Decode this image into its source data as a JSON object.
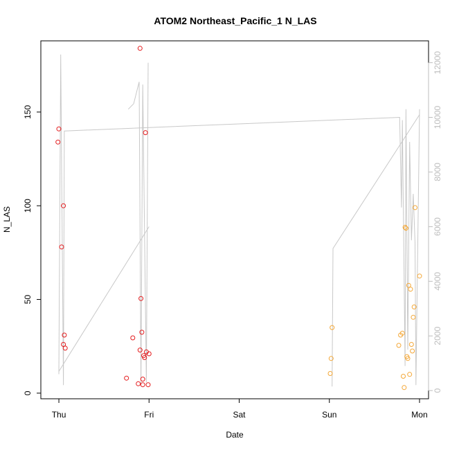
{
  "chart_data": {
    "type": "scatter",
    "title": "ATOM2 Northeast_Pacific_1 N_LAS",
    "xlabel": "Date",
    "ylabel": "N_LAS",
    "x_ticks": [
      "Thu",
      "Fri",
      "Sat",
      "Sun",
      "Mon"
    ],
    "xlim": [
      -0.2,
      4.1
    ],
    "ylim": [
      -3,
      188
    ],
    "y_ticks": [
      0,
      50,
      100,
      150
    ],
    "y2lim": [
      -300,
      12800
    ],
    "y2_ticks": [
      0,
      2000,
      4000,
      6000,
      8000,
      10000,
      12000
    ],
    "grid": false,
    "colors": {
      "series_red": "#e41a1c",
      "series_orange": "#f4a736",
      "line_gray": "#c8c8c8",
      "axis": "#000000",
      "right_axis": "#bdbdbd"
    },
    "series": [
      {
        "color": "series_red",
        "points": [
          [
            0.0,
            141
          ],
          [
            -0.01,
            134
          ],
          [
            0.05,
            100
          ],
          [
            0.03,
            78
          ],
          [
            0.06,
            31
          ],
          [
            0.05,
            26
          ],
          [
            0.07,
            24
          ],
          [
            0.75,
            8
          ],
          [
            0.82,
            29.5
          ],
          [
            0.88,
            5
          ],
          [
            0.9,
            23
          ],
          [
            0.91,
            50.5
          ],
          [
            0.92,
            32.5
          ],
          [
            0.93,
            7.5
          ],
          [
            0.93,
            4.5
          ],
          [
            0.94,
            20
          ],
          [
            0.95,
            19
          ],
          [
            0.96,
            139
          ],
          [
            0.97,
            22
          ],
          [
            0.99,
            4.5
          ],
          [
            1.0,
            21
          ],
          [
            0.9,
            184
          ]
        ]
      },
      {
        "color": "series_orange",
        "points": [
          [
            3.01,
            10.5
          ],
          [
            3.02,
            18.5
          ],
          [
            3.03,
            35
          ],
          [
            3.77,
            25.5
          ],
          [
            3.79,
            31
          ],
          [
            3.81,
            32
          ],
          [
            3.82,
            9
          ],
          [
            3.83,
            3
          ],
          [
            3.84,
            88.5
          ],
          [
            3.85,
            88
          ],
          [
            3.86,
            19.5
          ],
          [
            3.87,
            18.5
          ],
          [
            3.88,
            57.5
          ],
          [
            3.89,
            10
          ],
          [
            3.9,
            55.5
          ],
          [
            3.91,
            26
          ],
          [
            3.92,
            22.5
          ],
          [
            3.93,
            40.5
          ],
          [
            3.94,
            46
          ],
          [
            3.95,
            99
          ],
          [
            4.0,
            62.5
          ]
        ]
      }
    ],
    "line_series": {
      "axis": "right",
      "color": "line_gray",
      "points": [
        [
          0.0,
          600
        ],
        [
          0.02,
          12300
        ],
        [
          0.05,
          200
        ],
        [
          0.06,
          9500
        ],
        [
          3.78,
          10000
        ],
        [
          3.8,
          6700
        ],
        [
          3.81,
          9900
        ],
        [
          3.84,
          900
        ],
        [
          3.85,
          10300
        ],
        [
          3.87,
          1500
        ],
        [
          3.89,
          9100
        ],
        [
          3.91,
          5500
        ],
        [
          3.93,
          7200
        ],
        [
          3.95,
          5400
        ],
        [
          3.96,
          200
        ],
        [
          4.0,
          10300
        ]
      ],
      "extra_paths": [
        [
          [
            0.0,
            700
          ],
          [
            1.0,
            6000
          ]
        ],
        [
          [
            0.77,
            10300
          ],
          [
            0.83,
            10500
          ],
          [
            0.89,
            11300
          ],
          [
            0.91,
            200
          ],
          [
            0.93,
            11200
          ],
          [
            0.97,
            300
          ],
          [
            0.99,
            12000
          ]
        ],
        [
          [
            3.03,
            150
          ],
          [
            3.04,
            5200
          ],
          [
            4.0,
            10100
          ]
        ]
      ]
    }
  }
}
